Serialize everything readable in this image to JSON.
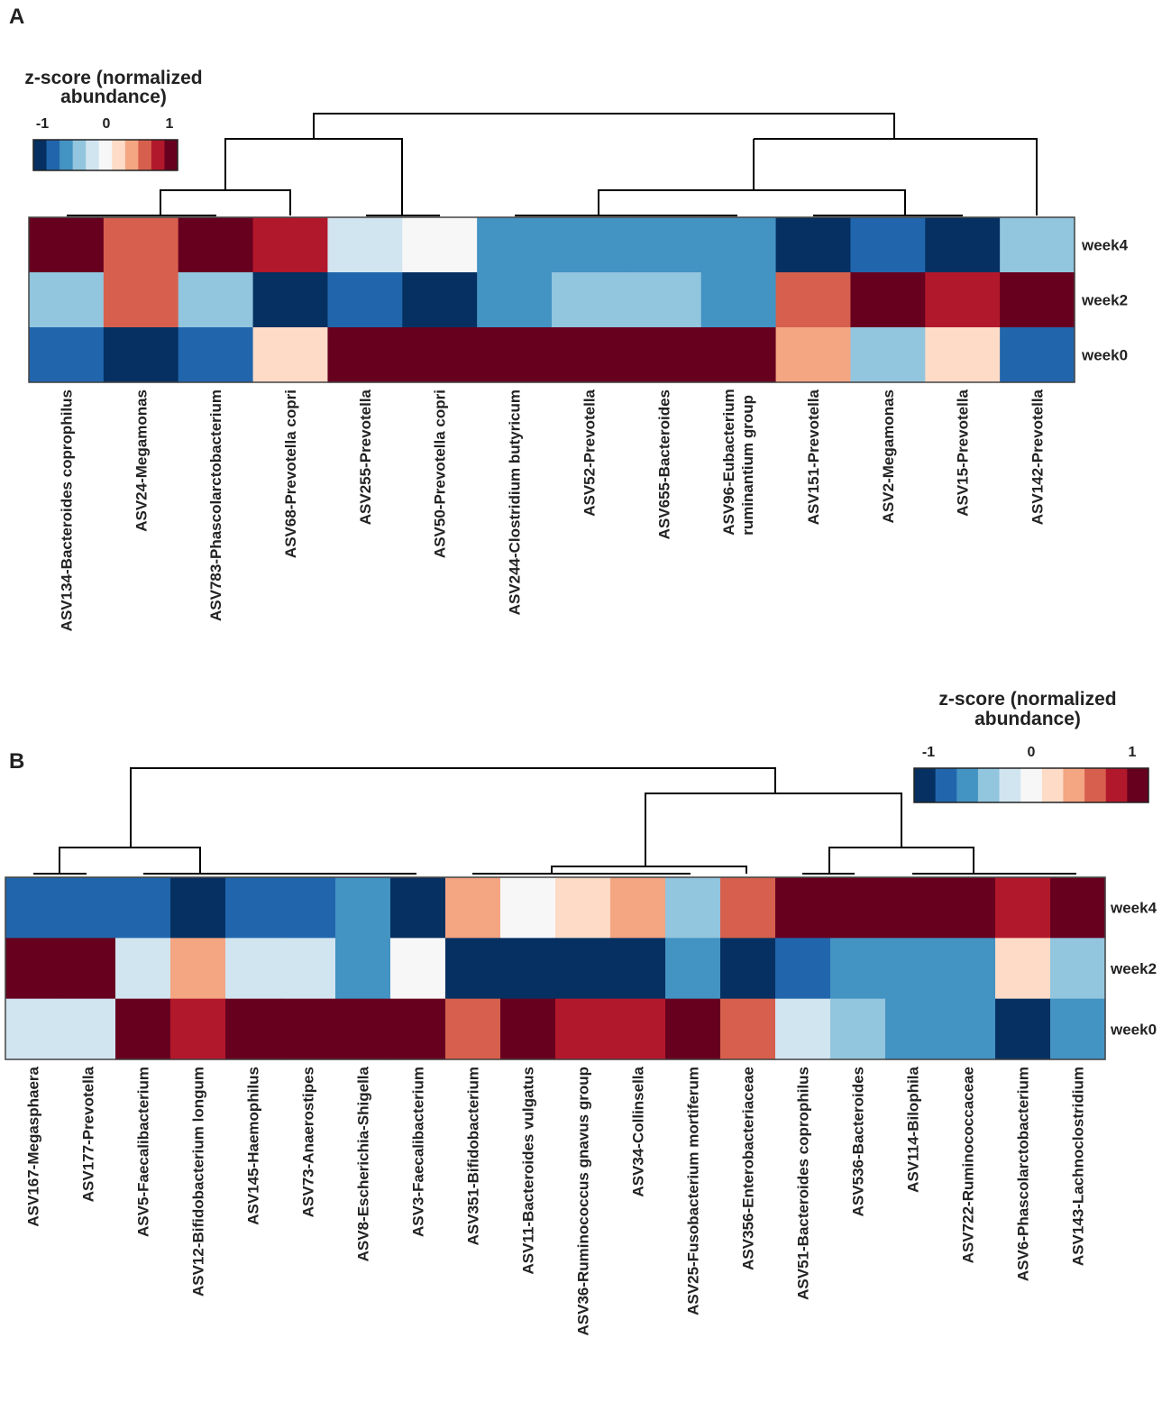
{
  "colors": {
    "palette": [
      "#053061",
      "#2166ac",
      "#4393c3",
      "#92c5de",
      "#d1e5f0",
      "#f7f7f7",
      "#fddbc7",
      "#f4a582",
      "#d6604d",
      "#b2182b",
      "#67001f"
    ],
    "line": "#000000",
    "text": "#222222"
  },
  "chart_data": [
    {
      "type": "heatmap",
      "panel_label": "A",
      "legend": {
        "title_line1": "z-score (normalized",
        "title_line2": "abundance)",
        "ticks": [
          "-1",
          "0",
          "1"
        ],
        "position": "top-left"
      },
      "rows": [
        "week4",
        "week2",
        "week0"
      ],
      "columns": [
        "ASV134-Bacteroides coprophilus",
        "ASV24-Megamonas",
        "ASV783-Phascolarctobacterium",
        "ASV68-Prevotella copri",
        "ASV255-Prevotella",
        "ASV50-Prevotella copri",
        "ASV244-Clostridium butyricum",
        "ASV52-Prevotella",
        "ASV655-Bacteroides",
        "ASV96-Eubacterium ruminantium group",
        "ASV151-Prevotella",
        "ASV2-Megamonas",
        "ASV15-Prevotella",
        "ASV142-Prevotella"
      ],
      "values": [
        [
          1.1,
          0.75,
          1.1,
          0.95,
          -0.2,
          0.0,
          -0.6,
          -0.6,
          -0.6,
          -0.6,
          -1.1,
          -0.85,
          -1.1,
          -0.4
        ],
        [
          -0.4,
          0.75,
          -0.4,
          -1.1,
          -0.85,
          -1.1,
          -0.6,
          -0.4,
          -0.4,
          -0.6,
          0.75,
          1.1,
          0.95,
          1.1
        ],
        [
          -0.85,
          -1.1,
          -0.85,
          0.2,
          1.1,
          1.1,
          1.1,
          1.1,
          1.1,
          1.1,
          0.4,
          -0.4,
          0.2,
          -0.85
        ]
      ],
      "value_range": [
        -1.1,
        1.1
      ]
    },
    {
      "type": "heatmap",
      "panel_label": "B",
      "legend": {
        "title_line1": "z-score (normalized",
        "title_line2": "abundance)",
        "ticks": [
          "-1",
          "0",
          "1"
        ],
        "position": "top-right"
      },
      "rows": [
        "week4",
        "week2",
        "week0"
      ],
      "columns": [
        "ASV167-Megasphaera",
        "ASV177-Prevotella",
        "ASV5-Faecalibacterium",
        "ASV12-Bifidobacterium longum",
        "ASV145-Haemophilus",
        "ASV73-Anaerostipes",
        "ASV8-Escherichia-Shigella",
        "ASV3-Faecalibacterium",
        "ASV351-Bifidobacterium",
        "ASV11-Bacteroides vulgatus",
        "ASV36-Ruminococcus gnavus group",
        "ASV34-Collinsella",
        "ASV25-Fusobacterium mortiferum",
        "ASV356-Enterobacteriaceae",
        "ASV51-Bacteroides coprophilus",
        "ASV536-Bacteroides",
        "ASV114-Bilophila",
        "ASV722-Ruminococcaceae",
        "ASV6-Phascolarctobacterium",
        "ASV143-Lachnoclostridium"
      ],
      "values": [
        [
          -0.85,
          -0.85,
          -0.85,
          -1.1,
          -0.85,
          -0.85,
          -0.6,
          -1.1,
          0.4,
          0.0,
          0.2,
          0.4,
          -0.4,
          0.75,
          1.1,
          1.1,
          1.1,
          1.1,
          0.95,
          1.1
        ],
        [
          1.1,
          1.1,
          -0.2,
          0.4,
          -0.2,
          -0.2,
          -0.6,
          0.0,
          -1.1,
          -1.1,
          -1.1,
          -1.1,
          -0.6,
          -1.1,
          -0.85,
          -0.6,
          -0.6,
          -0.6,
          0.2,
          -0.4
        ],
        [
          -0.2,
          -0.2,
          1.1,
          0.95,
          1.1,
          1.1,
          1.1,
          1.1,
          0.75,
          1.1,
          0.95,
          0.95,
          1.1,
          0.75,
          -0.2,
          -0.4,
          -0.6,
          -0.6,
          -1.1,
          -0.6
        ]
      ],
      "value_range": [
        -1.1,
        1.1
      ]
    }
  ]
}
